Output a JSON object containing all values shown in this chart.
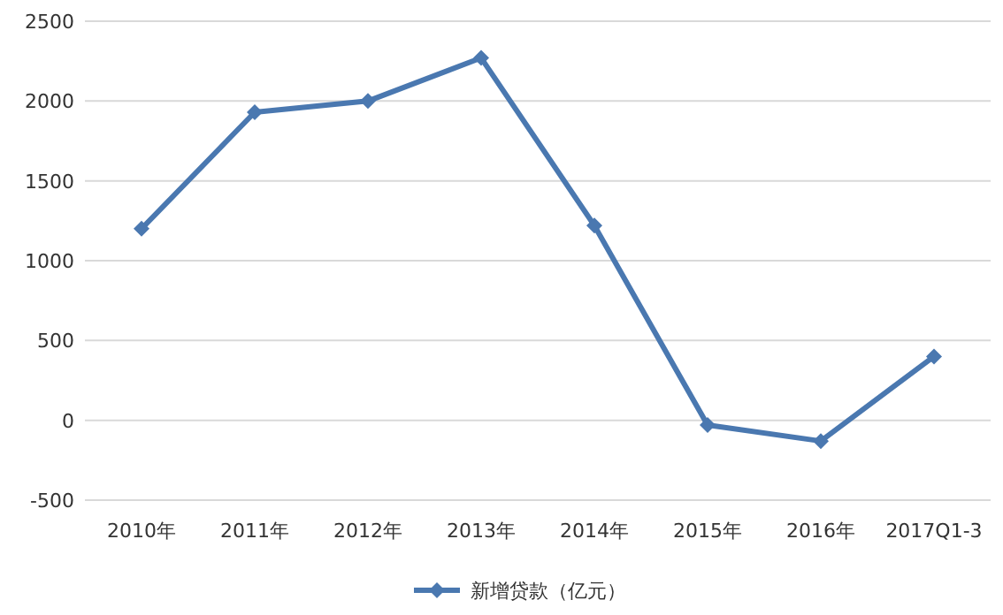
{
  "chart_data": {
    "type": "line",
    "categories": [
      "2010年",
      "2011年",
      "2012年",
      "2013年",
      "2014年",
      "2015年",
      "2016年",
      "2017Q1-3"
    ],
    "series": [
      {
        "name": "新增贷款（亿元）",
        "color": "#4a78b0",
        "values": [
          1200,
          1930,
          2000,
          2270,
          1220,
          -30,
          -130,
          400
        ]
      }
    ],
    "ylim": [
      -500,
      2500
    ],
    "yticks": [
      -500,
      0,
      500,
      1000,
      1500,
      2000,
      2500
    ],
    "grid": "y",
    "legend": "bottom",
    "marker": "diamond",
    "line_style": "solid"
  }
}
